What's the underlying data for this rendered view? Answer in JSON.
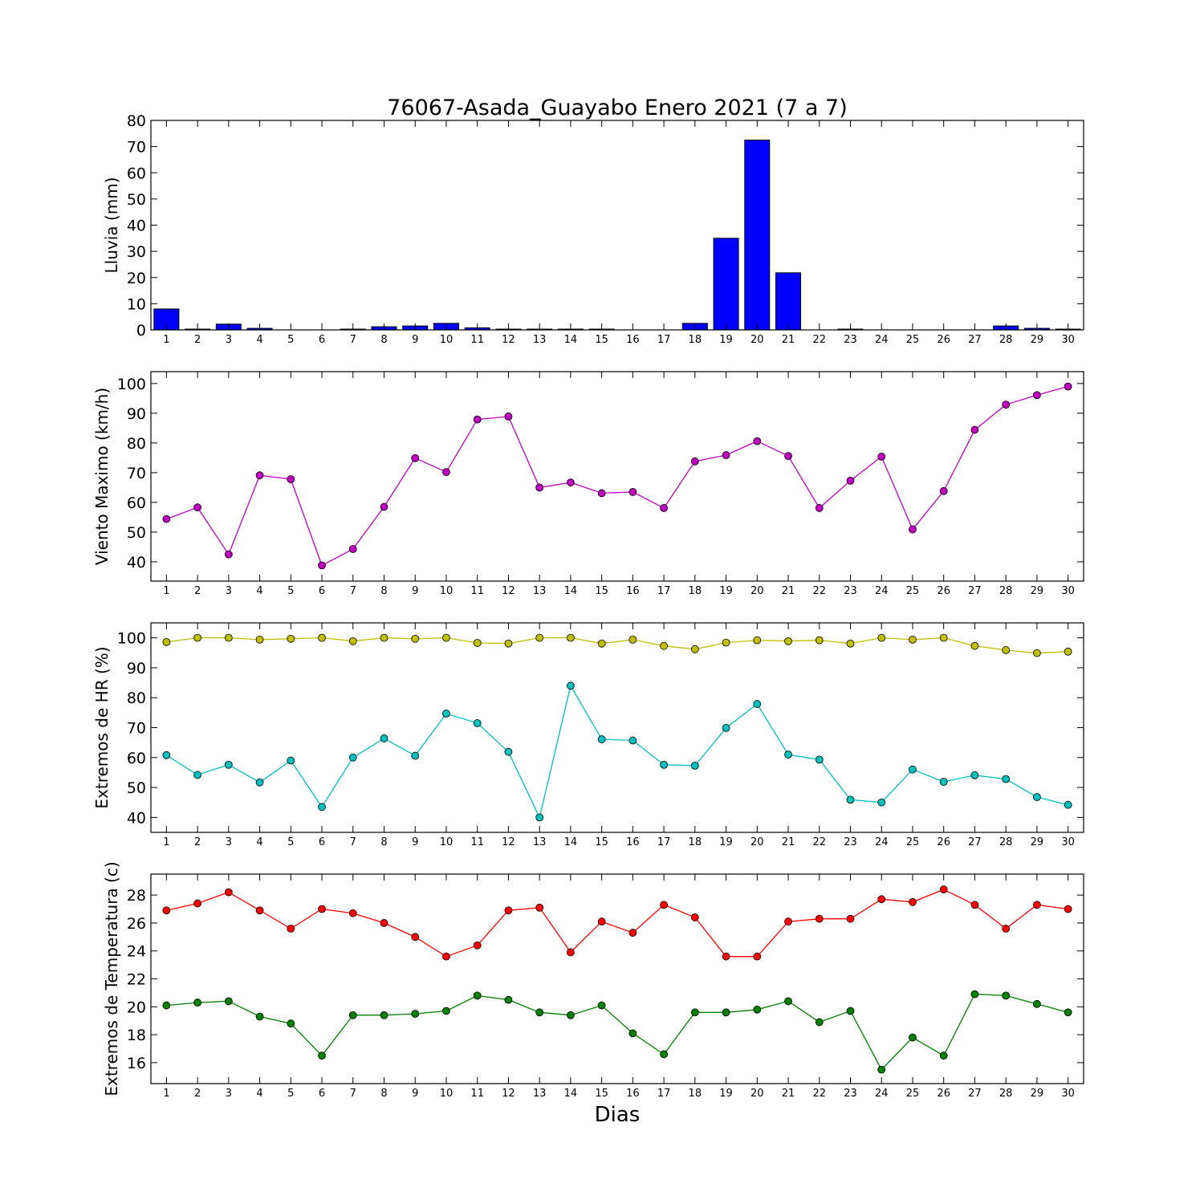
{
  "title": "76067-Asada_Guayabo Enero 2021  (7 a 7)",
  "xlabel": "Dias",
  "colors": {
    "rain": "#0000ff",
    "wind": "#bf00bf",
    "hr_max": "#bfbf00",
    "hr_min": "#00bfbf",
    "temp_max": "#ff0000",
    "temp_min": "#007f00"
  },
  "chart_data": [
    {
      "type": "bar",
      "ylabel": "Lluvia (mm)",
      "ylim": [
        0,
        80
      ],
      "yticks": [
        0,
        10,
        20,
        30,
        40,
        50,
        60,
        70,
        80
      ],
      "x": [
        1,
        2,
        3,
        4,
        5,
        6,
        7,
        8,
        9,
        10,
        11,
        12,
        13,
        14,
        15,
        16,
        17,
        18,
        19,
        20,
        21,
        22,
        23,
        24,
        25,
        26,
        27,
        28,
        29,
        30
      ],
      "series": [
        {
          "color_key": "rain",
          "values": [
            8.0,
            0.3,
            2.2,
            0.6,
            0,
            0,
            0.3,
            1.2,
            1.5,
            2.5,
            0.8,
            0.3,
            0.3,
            0.3,
            0.3,
            0,
            0,
            2.5,
            35.0,
            72.5,
            21.8,
            0,
            0.3,
            0,
            0,
            0,
            0,
            1.5,
            0.6,
            0.3
          ]
        }
      ]
    },
    {
      "type": "line",
      "ylabel": "Viento Maximo (km/h)",
      "ylim": [
        33.5,
        104
      ],
      "yticks": [
        40,
        50,
        60,
        70,
        80,
        90,
        100
      ],
      "x": [
        1,
        2,
        3,
        4,
        5,
        6,
        7,
        8,
        9,
        10,
        11,
        12,
        13,
        14,
        15,
        16,
        17,
        18,
        19,
        20,
        21,
        22,
        23,
        24,
        25,
        26,
        27,
        28,
        29,
        30
      ],
      "series": [
        {
          "color_key": "wind",
          "values": [
            54.4,
            58.3,
            42.5,
            69.1,
            67.8,
            38.8,
            44.3,
            58.5,
            74.9,
            70.2,
            87.9,
            88.9,
            65.0,
            66.7,
            63.1,
            63.5,
            58.1,
            73.8,
            75.9,
            80.6,
            75.6,
            58.1,
            67.3,
            75.4,
            50.9,
            63.8,
            84.4,
            92.9,
            96.1,
            99.0
          ]
        }
      ]
    },
    {
      "type": "line",
      "ylabel": "Extremos de HR (%)",
      "ylim": [
        35,
        105
      ],
      "yticks": [
        40,
        50,
        60,
        70,
        80,
        90,
        100
      ],
      "x": [
        1,
        2,
        3,
        4,
        5,
        6,
        7,
        8,
        9,
        10,
        11,
        12,
        13,
        14,
        15,
        16,
        17,
        18,
        19,
        20,
        21,
        22,
        23,
        24,
        25,
        26,
        27,
        28,
        29,
        30
      ],
      "series": [
        {
          "color_key": "hr_max",
          "values": [
            98.6,
            100,
            100,
            99.4,
            99.7,
            100,
            98.9,
            100,
            99.7,
            100,
            98.3,
            98.1,
            100,
            100,
            98.1,
            99.4,
            97.3,
            96.2,
            98.4,
            99.2,
            98.9,
            99.2,
            98.1,
            100,
            99.4,
            100,
            97.3,
            95.9,
            94.9,
            95.4
          ]
        },
        {
          "color_key": "hr_min",
          "values": [
            60.8,
            54.2,
            57.6,
            51.7,
            59.0,
            43.5,
            60.0,
            66.4,
            60.6,
            74.7,
            71.5,
            61.9,
            40.0,
            84.0,
            66.1,
            65.7,
            57.6,
            57.3,
            69.9,
            77.9,
            61.0,
            59.3,
            45.9,
            45.0,
            56.0,
            51.9,
            54.1,
            52.8,
            46.8,
            44.2
          ]
        }
      ]
    },
    {
      "type": "line",
      "ylabel": "Extremos de Temperatura (c)",
      "ylim": [
        14.5,
        29.5
      ],
      "yticks": [
        16,
        18,
        20,
        22,
        24,
        26,
        28
      ],
      "x": [
        1,
        2,
        3,
        4,
        5,
        6,
        7,
        8,
        9,
        10,
        11,
        12,
        13,
        14,
        15,
        16,
        17,
        18,
        19,
        20,
        21,
        22,
        23,
        24,
        25,
        26,
        27,
        28,
        29,
        30
      ],
      "series": [
        {
          "color_key": "temp_max",
          "values": [
            26.9,
            27.4,
            28.2,
            26.9,
            25.6,
            27.0,
            26.7,
            26.0,
            25.0,
            23.6,
            24.4,
            26.9,
            27.1,
            23.9,
            26.1,
            25.3,
            27.3,
            26.4,
            23.6,
            23.6,
            26.1,
            26.3,
            26.3,
            27.7,
            27.5,
            28.4,
            27.3,
            25.6,
            27.3,
            27.0
          ]
        },
        {
          "color_key": "temp_min",
          "values": [
            20.1,
            20.3,
            20.4,
            19.3,
            18.8,
            16.5,
            19.4,
            19.4,
            19.5,
            19.7,
            20.8,
            20.5,
            19.6,
            19.4,
            20.1,
            18.1,
            16.6,
            19.6,
            19.6,
            19.8,
            20.4,
            18.9,
            19.7,
            15.5,
            17.8,
            16.5,
            20.9,
            20.8,
            20.2,
            19.6
          ]
        }
      ]
    }
  ]
}
